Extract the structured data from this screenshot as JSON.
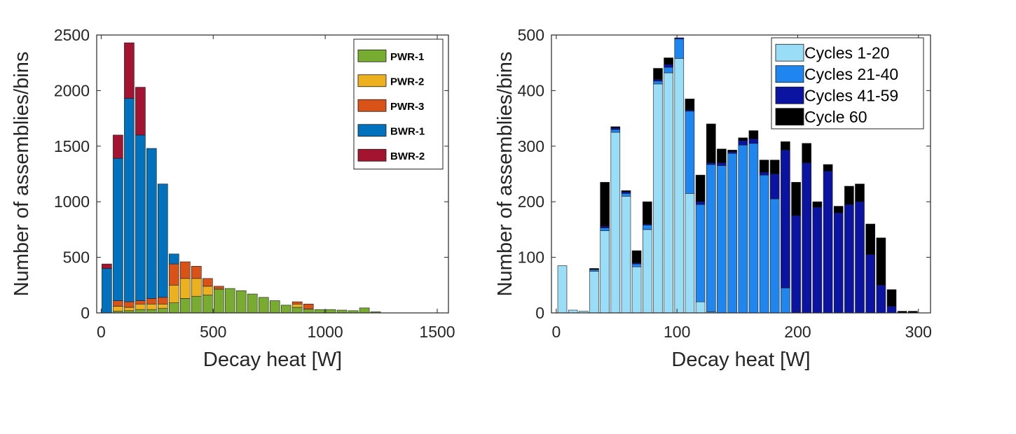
{
  "colors": {
    "PWR-1": "#77ac30",
    "PWR-2": "#edb120",
    "PWR-3": "#d95319",
    "BWR-1": "#0072bd",
    "BWR-2": "#a2142f",
    "Cycles 1-20": "#99ddf7",
    "Cycles 21-40": "#1f86f0",
    "Cycles 41-59": "#0a14a0",
    "Cycle 60": "#000000"
  },
  "chart_data": [
    {
      "type": "bar",
      "stacked": true,
      "title": "",
      "xlabel": "Decay heat [W]",
      "ylabel": "Number of assemblies/bins",
      "xlim": [
        -20,
        1550
      ],
      "ylim": [
        0,
        2500
      ],
      "xticks": [
        0,
        500,
        1000,
        1500
      ],
      "yticks": [
        0,
        500,
        1000,
        1500,
        2000,
        2500
      ],
      "bin_width": 50,
      "legend_position": "top-right",
      "x": [
        25,
        75,
        125,
        175,
        225,
        275,
        325,
        375,
        425,
        475,
        525,
        575,
        625,
        675,
        725,
        775,
        825,
        875,
        925,
        975,
        1025,
        1075,
        1125,
        1175,
        1225
      ],
      "series": [
        {
          "name": "PWR-1",
          "values": [
            0,
            15,
            20,
            30,
            30,
            40,
            90,
            130,
            150,
            160,
            210,
            220,
            200,
            170,
            140,
            110,
            70,
            50,
            35,
            30,
            30,
            25,
            20,
            45,
            10
          ]
        },
        {
          "name": "PWR-2",
          "values": [
            0,
            45,
            30,
            50,
            50,
            40,
            160,
            180,
            160,
            80,
            10,
            0,
            0,
            0,
            0,
            0,
            0,
            30,
            0,
            0,
            0,
            0,
            0,
            0,
            0
          ]
        },
        {
          "name": "PWR-3",
          "values": [
            0,
            50,
            50,
            30,
            50,
            60,
            190,
            150,
            110,
            70,
            20,
            0,
            0,
            0,
            0,
            0,
            0,
            20,
            45,
            0,
            0,
            0,
            0,
            0,
            0
          ]
        },
        {
          "name": "BWR-1",
          "values": [
            400,
            1280,
            1830,
            1490,
            1350,
            1020,
            90,
            0,
            0,
            0,
            0,
            0,
            0,
            0,
            0,
            0,
            0,
            0,
            0,
            0,
            0,
            0,
            0,
            0,
            0
          ]
        },
        {
          "name": "BWR-2",
          "values": [
            40,
            210,
            500,
            430,
            0,
            0,
            0,
            0,
            0,
            0,
            0,
            0,
            0,
            0,
            0,
            0,
            0,
            0,
            0,
            0,
            0,
            0,
            0,
            0,
            0
          ]
        }
      ]
    },
    {
      "type": "bar",
      "stacked": true,
      "title": "",
      "xlabel": "Decay heat [W]",
      "ylabel": "Number of assemblies/bins",
      "xlim": [
        -4,
        310
      ],
      "ylim": [
        0,
        500
      ],
      "xticks": [
        0,
        100,
        200,
        300
      ],
      "yticks": [
        0,
        100,
        200,
        300,
        400,
        500
      ],
      "bin_width": 8.8,
      "legend_position": "top-right",
      "x": [
        5,
        13.8,
        22.6,
        31.4,
        40.2,
        49,
        57.8,
        66.6,
        75.4,
        84.2,
        93,
        101.8,
        110.6,
        119.4,
        128.2,
        137,
        145.8,
        154.6,
        163.4,
        172.2,
        181,
        189.8,
        198.6,
        207.4,
        216.2,
        225,
        233.8,
        242.6,
        251.4,
        260.2,
        269,
        277.8,
        286.6,
        295.4
      ],
      "series": [
        {
          "name": "Cycles 1-20",
          "values": [
            85,
            5,
            3,
            75,
            148,
            325,
            210,
            83,
            150,
            412,
            432,
            458,
            215,
            20,
            2,
            0,
            0,
            0,
            0,
            0,
            0,
            0,
            0,
            0,
            0,
            0,
            0,
            0,
            0,
            0,
            0,
            0,
            0,
            0
          ]
        },
        {
          "name": "Cycles 21-40",
          "values": [
            0,
            0,
            0,
            3,
            5,
            5,
            5,
            5,
            8,
            5,
            10,
            35,
            148,
            175,
            265,
            265,
            287,
            302,
            305,
            248,
            205,
            45,
            0,
            0,
            0,
            0,
            0,
            0,
            0,
            0,
            0,
            0,
            0,
            0
          ]
        },
        {
          "name": "Cycles 41-59",
          "values": [
            0,
            0,
            0,
            0,
            3,
            3,
            3,
            2,
            2,
            3,
            5,
            2,
            2,
            5,
            3,
            5,
            3,
            8,
            8,
            5,
            45,
            248,
            175,
            270,
            190,
            255,
            180,
            195,
            200,
            105,
            50,
            12,
            0,
            0
          ]
        },
        {
          "name": "Cycle 60",
          "values": [
            0,
            0,
            0,
            2,
            79,
            2,
            2,
            22,
            40,
            20,
            12,
            0,
            20,
            48,
            70,
            25,
            3,
            5,
            15,
            22,
            25,
            15,
            60,
            35,
            10,
            12,
            12,
            33,
            32,
            55,
            85,
            30,
            3,
            3
          ]
        }
      ]
    }
  ]
}
